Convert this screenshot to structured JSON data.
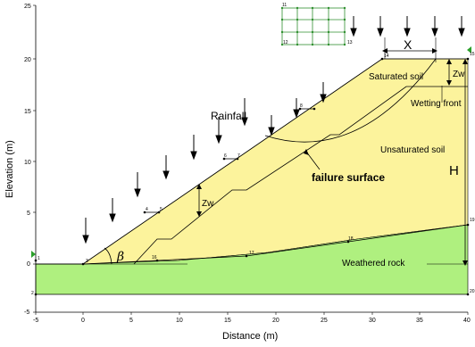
{
  "axes": {
    "x_title": "Distance (m)",
    "y_title": "Elevation (m)",
    "x_ticks": [
      "-5",
      "0",
      "5",
      "10",
      "15",
      "20",
      "25",
      "30",
      "35",
      "40"
    ],
    "y_ticks": [
      "-5",
      "0",
      "5",
      "10",
      "15",
      "20",
      "25"
    ]
  },
  "labels": {
    "rainfall": "Rainfall",
    "saturated_soil": "Saturated  soil",
    "wetting_front": "Wetting front",
    "unsaturated_soil": "Unsaturated soil",
    "failure_surface": "failure surface",
    "weathered_rock": "Weathered rock",
    "zw_top": "Zw",
    "zw_slope": "Zw",
    "height": "H",
    "x_dim": "X",
    "beta": "β"
  },
  "nodes": {
    "n1": "1",
    "n2": "2",
    "n3": "3",
    "n4": "4",
    "n5": "5",
    "n6": "6",
    "n7": "7",
    "n8": "8",
    "n11": "11",
    "n12": "12",
    "n13": "13",
    "n14": "14",
    "n15": "15",
    "n16": "16",
    "n17": "17",
    "n18": "18",
    "n19": "19",
    "n20": "20"
  },
  "colors": {
    "soil": "#fcf39c",
    "rock": "#aff07f",
    "line": "#000000",
    "node_dot": "#000000"
  }
}
